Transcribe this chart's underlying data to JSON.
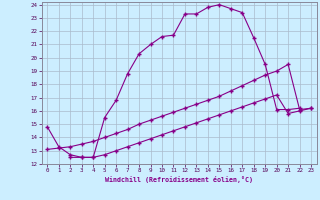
{
  "xlabel": "Windchill (Refroidissement éolien,°C)",
  "xlim": [
    -0.5,
    23.5
  ],
  "ylim": [
    12,
    24.2
  ],
  "xticks": [
    0,
    1,
    2,
    3,
    4,
    5,
    6,
    7,
    8,
    9,
    10,
    11,
    12,
    13,
    14,
    15,
    16,
    17,
    18,
    19,
    20,
    21,
    22,
    23
  ],
  "yticks": [
    12,
    13,
    14,
    15,
    16,
    17,
    18,
    19,
    20,
    21,
    22,
    23,
    24
  ],
  "bg_color": "#cceeff",
  "line_color": "#880088",
  "grid_color": "#aabbcc",
  "marker": "+",
  "line1_x": [
    0,
    1,
    2,
    3,
    4,
    5,
    6,
    7,
    8,
    9,
    10,
    11,
    12,
    13,
    14,
    15,
    16,
    17,
    18,
    19,
    20,
    21,
    22
  ],
  "line1_y": [
    14.8,
    13.3,
    12.7,
    12.5,
    12.5,
    15.5,
    16.8,
    18.8,
    20.3,
    21.0,
    21.6,
    21.7,
    23.3,
    23.3,
    23.8,
    24.0,
    23.7,
    23.4,
    21.5,
    19.5,
    16.1,
    16.1,
    16.2
  ],
  "line2_x": [
    0,
    1,
    2,
    3,
    4,
    5,
    6,
    7,
    8,
    9,
    10,
    11,
    12,
    13,
    14,
    15,
    16,
    17,
    18,
    19,
    20,
    21,
    22,
    23
  ],
  "line2_y": [
    13.1,
    13.2,
    13.3,
    13.5,
    13.7,
    14.0,
    14.3,
    14.6,
    15.0,
    15.3,
    15.6,
    15.9,
    16.2,
    16.5,
    16.8,
    17.1,
    17.5,
    17.9,
    18.3,
    18.7,
    19.0,
    19.5,
    16.1,
    16.2
  ],
  "line3_x": [
    2,
    3,
    4,
    5,
    6,
    7,
    8,
    9,
    10,
    11,
    12,
    13,
    14,
    15,
    16,
    17,
    18,
    19,
    20,
    21,
    22,
    23
  ],
  "line3_y": [
    12.5,
    12.5,
    12.5,
    12.7,
    13.0,
    13.3,
    13.6,
    13.9,
    14.2,
    14.5,
    14.8,
    15.1,
    15.4,
    15.7,
    16.0,
    16.3,
    16.6,
    16.9,
    17.2,
    15.8,
    16.0,
    16.2
  ]
}
